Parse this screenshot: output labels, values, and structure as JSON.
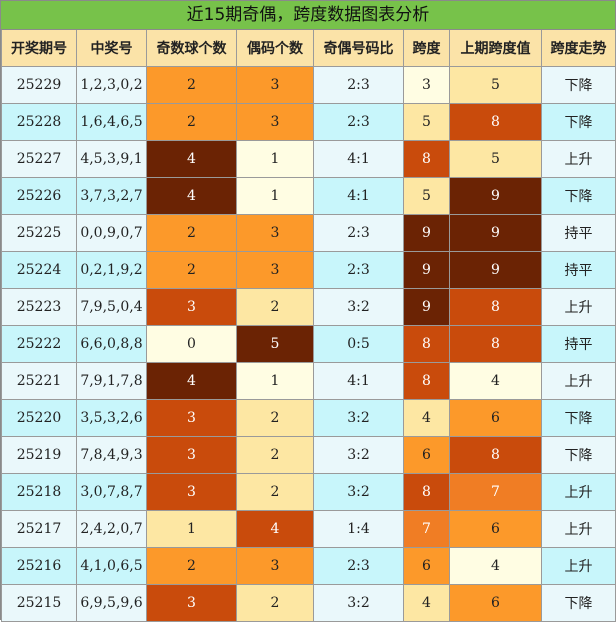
{
  "title": "近15期奇偶，跨度数据图表分析",
  "headers": [
    "开奖期号",
    "中奖号",
    "奇数球个数",
    "偶码个数",
    "奇偶号码比",
    "跨度",
    "上期跨度值",
    "跨度走势"
  ],
  "colors": {
    "header_bg": "#fbe3a8",
    "title_bg": "#77c24a",
    "row_light": "#eaf8fb",
    "row_dark": "#c8f6fb",
    "shade_0": "#fffde3",
    "shade_1": "#fde7a3",
    "shade_2": "#fc992a",
    "shade_3": "#c94b0c",
    "shade_4": "#6b2304"
  },
  "rows": [
    {
      "issue": "25229",
      "numbers": "1,2,3,0,2",
      "odd": "2",
      "even": "3",
      "ratio": "2:3",
      "span": "3",
      "prev_span": "5",
      "trend": "下降"
    },
    {
      "issue": "25228",
      "numbers": "1,6,4,6,5",
      "odd": "2",
      "even": "3",
      "ratio": "2:3",
      "span": "5",
      "prev_span": "8",
      "trend": "下降"
    },
    {
      "issue": "25227",
      "numbers": "4,5,3,9,1",
      "odd": "4",
      "even": "1",
      "ratio": "4:1",
      "span": "8",
      "prev_span": "5",
      "trend": "上升"
    },
    {
      "issue": "25226",
      "numbers": "3,7,3,2,7",
      "odd": "4",
      "even": "1",
      "ratio": "4:1",
      "span": "5",
      "prev_span": "9",
      "trend": "下降"
    },
    {
      "issue": "25225",
      "numbers": "0,0,9,0,7",
      "odd": "2",
      "even": "3",
      "ratio": "2:3",
      "span": "9",
      "prev_span": "9",
      "trend": "持平"
    },
    {
      "issue": "25224",
      "numbers": "0,2,1,9,2",
      "odd": "2",
      "even": "3",
      "ratio": "2:3",
      "span": "9",
      "prev_span": "9",
      "trend": "持平"
    },
    {
      "issue": "25223",
      "numbers": "7,9,5,0,4",
      "odd": "3",
      "even": "2",
      "ratio": "3:2",
      "span": "9",
      "prev_span": "8",
      "trend": "上升"
    },
    {
      "issue": "25222",
      "numbers": "6,6,0,8,8",
      "odd": "0",
      "even": "5",
      "ratio": "0:5",
      "span": "8",
      "prev_span": "8",
      "trend": "持平"
    },
    {
      "issue": "25221",
      "numbers": "7,9,1,7,8",
      "odd": "4",
      "even": "1",
      "ratio": "4:1",
      "span": "8",
      "prev_span": "4",
      "trend": "上升"
    },
    {
      "issue": "25220",
      "numbers": "3,5,3,2,6",
      "odd": "3",
      "even": "2",
      "ratio": "3:2",
      "span": "4",
      "prev_span": "6",
      "trend": "下降"
    },
    {
      "issue": "25219",
      "numbers": "7,8,4,9,3",
      "odd": "3",
      "even": "2",
      "ratio": "3:2",
      "span": "6",
      "prev_span": "8",
      "trend": "下降"
    },
    {
      "issue": "25218",
      "numbers": "3,0,7,8,7",
      "odd": "3",
      "even": "2",
      "ratio": "3:2",
      "span": "8",
      "prev_span": "7",
      "trend": "上升"
    },
    {
      "issue": "25217",
      "numbers": "2,4,2,0,7",
      "odd": "1",
      "even": "4",
      "ratio": "1:4",
      "span": "7",
      "prev_span": "6",
      "trend": "上升"
    },
    {
      "issue": "25216",
      "numbers": "4,1,0,6,5",
      "odd": "2",
      "even": "3",
      "ratio": "2:3",
      "span": "6",
      "prev_span": "4",
      "trend": "上升"
    },
    {
      "issue": "25215",
      "numbers": "6,9,5,9,6",
      "odd": "3",
      "even": "2",
      "ratio": "3:2",
      "span": "4",
      "prev_span": "6",
      "trend": "下降"
    }
  ]
}
